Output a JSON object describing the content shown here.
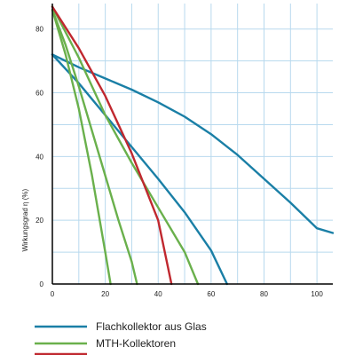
{
  "chart_data": {
    "type": "line",
    "title": "",
    "xlabel": "",
    "ylabel": "Wirkungsgrad η (%)",
    "xlim": [
      0,
      106
    ],
    "ylim": [
      0,
      88
    ],
    "x_ticks": [
      0,
      20,
      40,
      60,
      80,
      100
    ],
    "y_ticks": [
      0,
      20,
      40,
      60,
      80
    ],
    "grid": true,
    "grid_step": {
      "x": 10,
      "y": 10
    },
    "colors": {
      "grid": "#b8d9ee",
      "axes": "#000000",
      "blue": "#1a7fa6",
      "green": "#6ab04c",
      "red": "#c0282f"
    },
    "legend": {
      "placement": "bottom",
      "entries": [
        {
          "label": "Flachkollektor aus Glas",
          "color": "#1a7fa6"
        },
        {
          "label": "MTH-Kollektoren",
          "color": "#6ab04c"
        },
        {
          "label": "",
          "color": "#c0282f"
        }
      ]
    },
    "series": [
      {
        "color": "#1a7fa6",
        "points": [
          [
            0,
            72
          ],
          [
            10,
            68
          ],
          [
            20,
            64.5
          ],
          [
            30,
            61
          ],
          [
            40,
            57
          ],
          [
            50,
            52.5
          ],
          [
            60,
            47
          ],
          [
            70,
            40.5
          ],
          [
            80,
            33
          ],
          [
            90,
            25.5
          ],
          [
            100,
            17.5
          ],
          [
            106,
            16
          ]
        ]
      },
      {
        "color": "#1a7fa6",
        "points": [
          [
            0,
            72
          ],
          [
            10,
            63
          ],
          [
            20,
            53
          ],
          [
            30,
            43
          ],
          [
            40,
            33
          ],
          [
            50,
            22.5
          ],
          [
            60,
            10.5
          ],
          [
            66,
            0
          ]
        ]
      },
      {
        "color": "#6ab04c",
        "points": [
          [
            0,
            86
          ],
          [
            5,
            72
          ],
          [
            10,
            55
          ],
          [
            15,
            34
          ],
          [
            20,
            10
          ],
          [
            22,
            0
          ]
        ]
      },
      {
        "color": "#6ab04c",
        "points": [
          [
            0,
            86
          ],
          [
            5,
            75
          ],
          [
            10,
            62
          ],
          [
            15,
            48
          ],
          [
            20,
            34
          ],
          [
            25,
            20
          ],
          [
            30,
            7
          ],
          [
            32,
            0
          ]
        ]
      },
      {
        "color": "#6ab04c",
        "points": [
          [
            0,
            87
          ],
          [
            10,
            71
          ],
          [
            20,
            53
          ],
          [
            30,
            38
          ],
          [
            40,
            24
          ],
          [
            50,
            10
          ],
          [
            55,
            0
          ]
        ]
      },
      {
        "color": "#c0282f",
        "points": [
          [
            0,
            87
          ],
          [
            10,
            74
          ],
          [
            20,
            59
          ],
          [
            30,
            41
          ],
          [
            40,
            20
          ],
          [
            45,
            0
          ]
        ]
      }
    ]
  }
}
